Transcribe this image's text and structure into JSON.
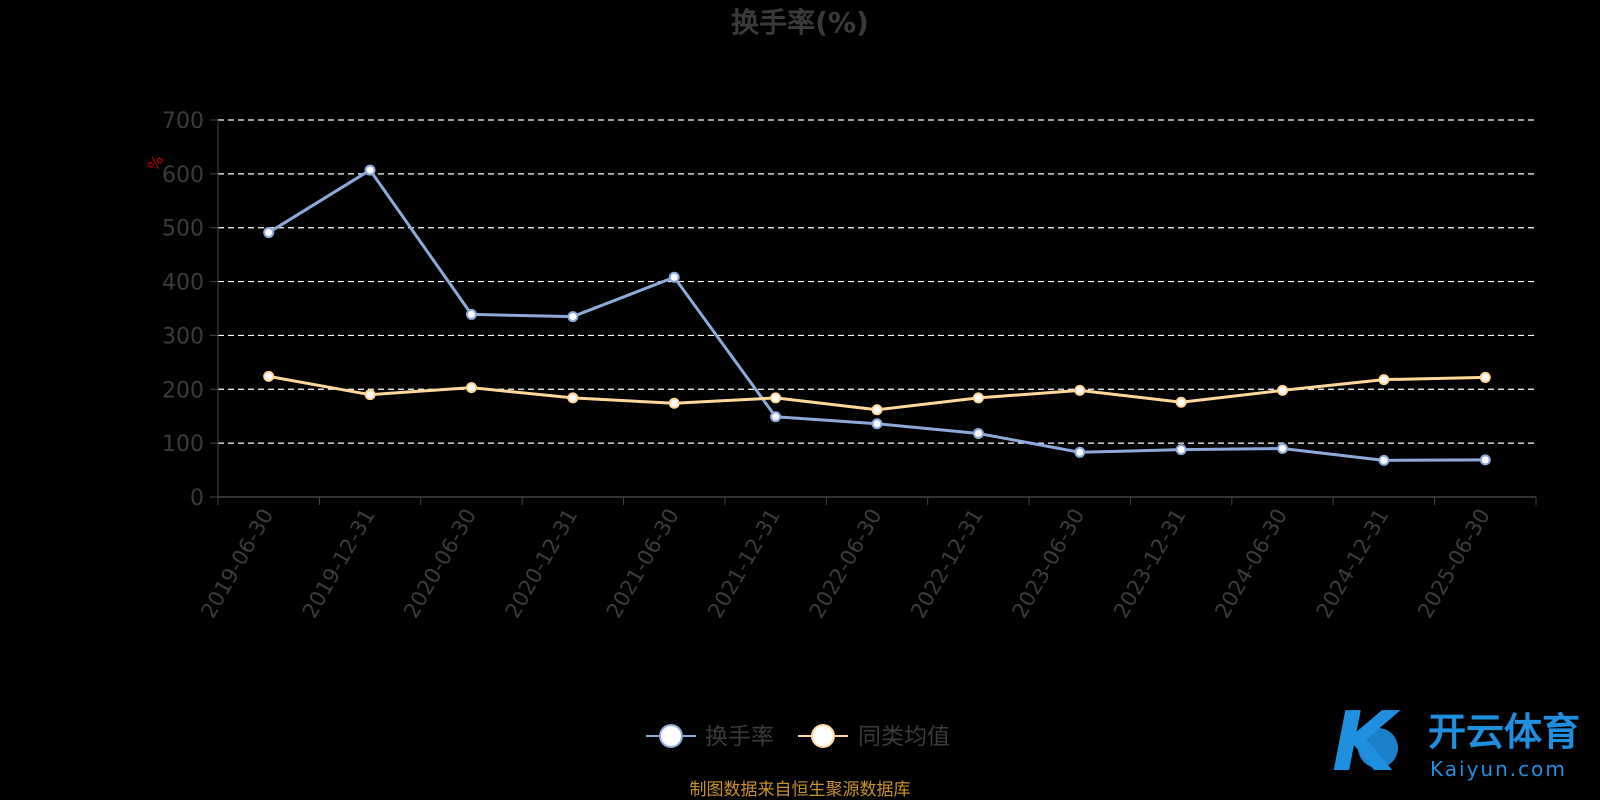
{
  "chart_data": {
    "type": "line",
    "title": "换手率(%)",
    "y_unit": "%",
    "categories": [
      "2019-06-30",
      "2019-12-31",
      "2020-06-30",
      "2020-12-31",
      "2021-06-30",
      "2021-12-31",
      "2022-06-30",
      "2022-12-31",
      "2023-06-30",
      "2023-12-31",
      "2024-06-30",
      "2024-12-31",
      "2025-06-30"
    ],
    "series": [
      {
        "name": "换手率",
        "color": "#8eaadb",
        "values": [
          491,
          607,
          339,
          335,
          408,
          149,
          136,
          118,
          83,
          88,
          90,
          68,
          69
        ]
      },
      {
        "name": "同类均值",
        "color": "#ffd89a",
        "values": [
          224,
          190,
          203,
          184,
          174,
          184,
          162,
          184,
          198,
          176,
          198,
          218,
          222
        ]
      }
    ],
    "ylim": [
      0,
      700
    ],
    "yticks": [
      0,
      100,
      200,
      300,
      400,
      500,
      600,
      700
    ],
    "grid": true,
    "legend_position": "bottom-center"
  },
  "source_note": "制图数据来自恒生聚源数据库",
  "watermark": {
    "cn": "开云体育",
    "en": "Kaiyun.com"
  }
}
